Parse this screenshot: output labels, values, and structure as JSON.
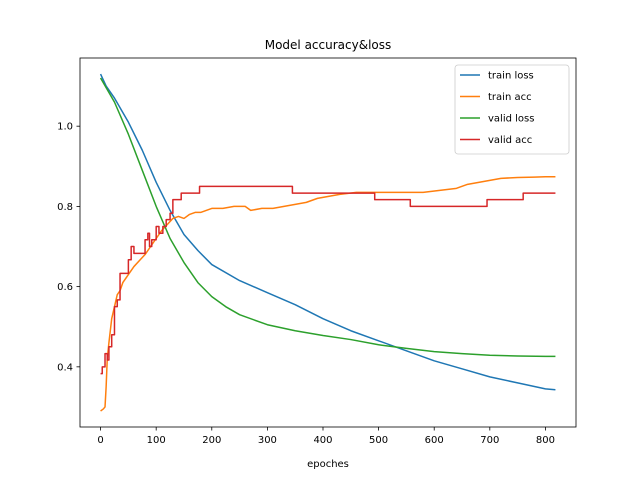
{
  "chart_data": {
    "type": "line",
    "title": "Model accuracy&loss",
    "xlabel": "epoches",
    "ylabel": "",
    "xlim": [
      -37,
      855
    ],
    "ylim": [
      0.25,
      1.17
    ],
    "xticks": [
      0,
      100,
      200,
      300,
      400,
      500,
      600,
      700,
      800
    ],
    "yticks": [
      0.4,
      0.6,
      0.8,
      1.0
    ],
    "grid": false,
    "legend_position": "top-right",
    "series": [
      {
        "name": "train loss",
        "color": "#1f77b4",
        "step": false,
        "points": [
          [
            0,
            1.13
          ],
          [
            10,
            1.1
          ],
          [
            25,
            1.07
          ],
          [
            50,
            1.01
          ],
          [
            75,
            0.94
          ],
          [
            100,
            0.86
          ],
          [
            125,
            0.79
          ],
          [
            150,
            0.73
          ],
          [
            175,
            0.69
          ],
          [
            200,
            0.655
          ],
          [
            250,
            0.615
          ],
          [
            300,
            0.585
          ],
          [
            350,
            0.555
          ],
          [
            400,
            0.52
          ],
          [
            450,
            0.49
          ],
          [
            500,
            0.465
          ],
          [
            550,
            0.44
          ],
          [
            600,
            0.415
          ],
          [
            650,
            0.395
          ],
          [
            700,
            0.375
          ],
          [
            750,
            0.36
          ],
          [
            800,
            0.345
          ],
          [
            818,
            0.343
          ]
        ]
      },
      {
        "name": "train acc",
        "color": "#ff7f0e",
        "step": false,
        "points": [
          [
            0,
            0.29
          ],
          [
            5,
            0.295
          ],
          [
            8,
            0.3
          ],
          [
            10,
            0.35
          ],
          [
            12,
            0.42
          ],
          [
            15,
            0.46
          ],
          [
            20,
            0.52
          ],
          [
            25,
            0.55
          ],
          [
            30,
            0.58
          ],
          [
            35,
            0.59
          ],
          [
            40,
            0.61
          ],
          [
            50,
            0.63
          ],
          [
            60,
            0.65
          ],
          [
            70,
            0.665
          ],
          [
            80,
            0.68
          ],
          [
            90,
            0.7
          ],
          [
            100,
            0.72
          ],
          [
            110,
            0.74
          ],
          [
            120,
            0.755
          ],
          [
            130,
            0.77
          ],
          [
            140,
            0.775
          ],
          [
            150,
            0.77
          ],
          [
            160,
            0.78
          ],
          [
            170,
            0.785
          ],
          [
            180,
            0.785
          ],
          [
            190,
            0.79
          ],
          [
            200,
            0.795
          ],
          [
            220,
            0.795
          ],
          [
            240,
            0.8
          ],
          [
            260,
            0.8
          ],
          [
            270,
            0.79
          ],
          [
            290,
            0.795
          ],
          [
            310,
            0.795
          ],
          [
            330,
            0.8
          ],
          [
            350,
            0.805
          ],
          [
            370,
            0.81
          ],
          [
            390,
            0.82
          ],
          [
            410,
            0.825
          ],
          [
            430,
            0.83
          ],
          [
            460,
            0.835
          ],
          [
            490,
            0.835
          ],
          [
            520,
            0.835
          ],
          [
            550,
            0.835
          ],
          [
            580,
            0.835
          ],
          [
            610,
            0.84
          ],
          [
            640,
            0.845
          ],
          [
            660,
            0.855
          ],
          [
            680,
            0.86
          ],
          [
            700,
            0.865
          ],
          [
            720,
            0.87
          ],
          [
            750,
            0.872
          ],
          [
            780,
            0.873
          ],
          [
            800,
            0.874
          ],
          [
            818,
            0.874
          ]
        ]
      },
      {
        "name": "valid loss",
        "color": "#2ca02c",
        "step": false,
        "points": [
          [
            0,
            1.12
          ],
          [
            25,
            1.06
          ],
          [
            50,
            0.98
          ],
          [
            75,
            0.89
          ],
          [
            100,
            0.8
          ],
          [
            125,
            0.72
          ],
          [
            150,
            0.66
          ],
          [
            175,
            0.61
          ],
          [
            200,
            0.575
          ],
          [
            225,
            0.55
          ],
          [
            250,
            0.53
          ],
          [
            300,
            0.505
          ],
          [
            350,
            0.49
          ],
          [
            400,
            0.478
          ],
          [
            450,
            0.468
          ],
          [
            500,
            0.455
          ],
          [
            550,
            0.446
          ],
          [
            600,
            0.438
          ],
          [
            650,
            0.433
          ],
          [
            700,
            0.429
          ],
          [
            750,
            0.427
          ],
          [
            800,
            0.426
          ],
          [
            818,
            0.426
          ]
        ]
      },
      {
        "name": "valid acc",
        "color": "#d62728",
        "step": true,
        "points": [
          [
            0,
            0.383
          ],
          [
            3,
            0.4
          ],
          [
            8,
            0.433
          ],
          [
            12,
            0.417
          ],
          [
            15,
            0.45
          ],
          [
            20,
            0.48
          ],
          [
            25,
            0.55
          ],
          [
            30,
            0.567
          ],
          [
            35,
            0.633
          ],
          [
            45,
            0.633
          ],
          [
            50,
            0.667
          ],
          [
            55,
            0.7
          ],
          [
            60,
            0.683
          ],
          [
            70,
            0.683
          ],
          [
            80,
            0.717
          ],
          [
            85,
            0.733
          ],
          [
            88,
            0.7
          ],
          [
            92,
            0.717
          ],
          [
            100,
            0.75
          ],
          [
            105,
            0.733
          ],
          [
            112,
            0.75
          ],
          [
            118,
            0.767
          ],
          [
            125,
            0.783
          ],
          [
            130,
            0.817
          ],
          [
            140,
            0.817
          ],
          [
            145,
            0.833
          ],
          [
            178,
            0.85
          ],
          [
            345,
            0.833
          ],
          [
            493,
            0.817
          ],
          [
            557,
            0.8
          ],
          [
            695,
            0.817
          ],
          [
            760,
            0.833
          ],
          [
            818,
            0.833
          ]
        ]
      }
    ]
  }
}
